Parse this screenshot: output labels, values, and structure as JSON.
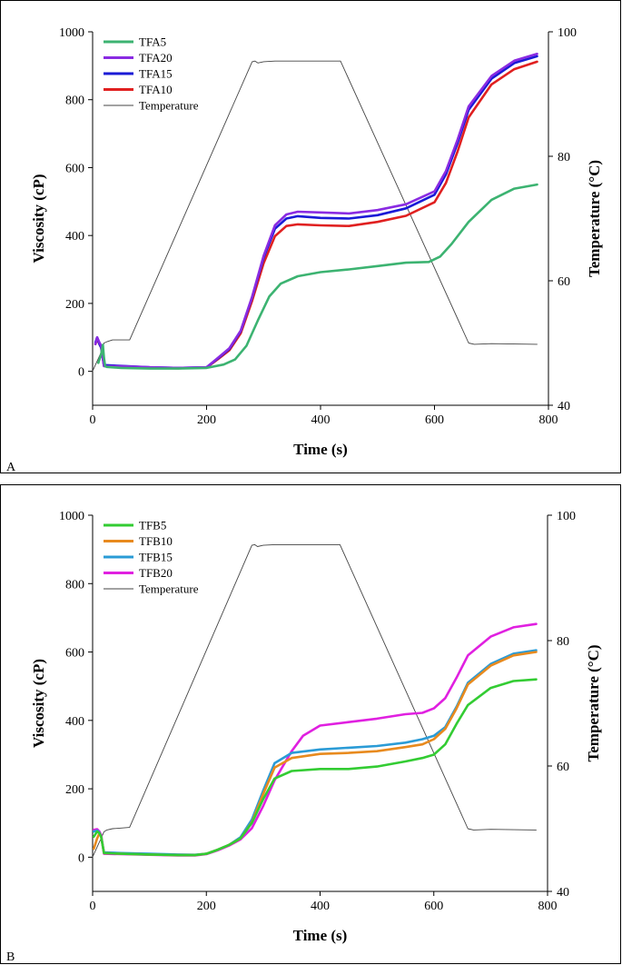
{
  "chart_data": [
    {
      "type": "line",
      "panel_label": "A",
      "xlabel": "Time (s)",
      "ylabel": "Viscosity (cP)",
      "y2label": "Temperature (°C)",
      "xlim": [
        0,
        800
      ],
      "ylim": [
        -100,
        1000
      ],
      "y2lim": [
        40,
        100
      ],
      "xticks": [
        0,
        200,
        400,
        600,
        800
      ],
      "yticks": [
        0,
        200,
        400,
        600,
        800,
        1000
      ],
      "y2ticks": [
        40,
        60,
        80,
        100
      ],
      "legend": "top-left",
      "grid": false,
      "series": [
        {
          "name": "TFA5",
          "color": "#3cb371",
          "axis": "left",
          "x": [
            10,
            15,
            18,
            20,
            22,
            25,
            50,
            100,
            150,
            200,
            230,
            250,
            270,
            290,
            310,
            330,
            360,
            400,
            450,
            500,
            550,
            590,
            610,
            630,
            660,
            700,
            740,
            780
          ],
          "y": [
            25,
            50,
            78,
            40,
            15,
            13,
            10,
            8,
            8,
            10,
            20,
            35,
            75,
            150,
            220,
            258,
            280,
            292,
            300,
            310,
            320,
            322,
            338,
            375,
            440,
            505,
            538,
            550
          ]
        },
        {
          "name": "TFA20",
          "color": "#8a2be2",
          "axis": "left",
          "x": [
            5,
            8,
            12,
            15,
            20,
            25,
            50,
            100,
            150,
            200,
            220,
            240,
            260,
            280,
            300,
            320,
            340,
            360,
            400,
            450,
            500,
            550,
            600,
            620,
            640,
            660,
            700,
            740,
            780
          ],
          "y": [
            80,
            100,
            85,
            75,
            15,
            15,
            15,
            12,
            10,
            12,
            40,
            68,
            120,
            220,
            340,
            430,
            462,
            470,
            468,
            465,
            475,
            492,
            530,
            590,
            680,
            780,
            870,
            915,
            935
          ]
        },
        {
          "name": "TFA15",
          "color": "#1a1ad6",
          "axis": "left",
          "x": [
            5,
            8,
            12,
            15,
            20,
            25,
            50,
            100,
            150,
            200,
            220,
            240,
            260,
            280,
            300,
            320,
            340,
            360,
            400,
            450,
            500,
            550,
            600,
            620,
            640,
            660,
            700,
            740,
            780
          ],
          "y": [
            85,
            100,
            80,
            70,
            18,
            18,
            16,
            12,
            10,
            12,
            38,
            66,
            118,
            218,
            335,
            420,
            450,
            457,
            452,
            450,
            460,
            480,
            520,
            580,
            670,
            770,
            862,
            908,
            928
          ]
        },
        {
          "name": "TFA10",
          "color": "#e02020",
          "axis": "left",
          "x": [
            5,
            8,
            12,
            15,
            20,
            25,
            50,
            100,
            150,
            200,
            220,
            240,
            260,
            280,
            300,
            320,
            340,
            360,
            400,
            450,
            500,
            550,
            600,
            620,
            640,
            660,
            700,
            740,
            780
          ],
          "y": [
            80,
            95,
            80,
            70,
            16,
            15,
            13,
            10,
            9,
            11,
            36,
            62,
            112,
            208,
            318,
            398,
            428,
            433,
            430,
            428,
            440,
            458,
            498,
            555,
            645,
            748,
            845,
            890,
            912
          ]
        },
        {
          "name": "Temperature",
          "color": "#444444",
          "axis": "right",
          "x": [
            0,
            15,
            20,
            25,
            35,
            65,
            280,
            285,
            290,
            300,
            320,
            360,
            400,
            435,
            660,
            670,
            700,
            780
          ],
          "y": [
            45.5,
            48.5,
            50,
            50.2,
            50.5,
            50.5,
            95.2,
            95.3,
            95,
            95.2,
            95.3,
            95.3,
            95.3,
            95.3,
            50,
            49.8,
            49.9,
            49.8
          ]
        }
      ]
    },
    {
      "type": "line",
      "panel_label": "B",
      "xlabel": "Time (s)",
      "ylabel": "Viscosity (cP)",
      "y2label": "Temperature (°C)",
      "xlim": [
        0,
        800
      ],
      "ylim": [
        -100,
        1000
      ],
      "y2lim": [
        40,
        100
      ],
      "xticks": [
        0,
        200,
        400,
        600,
        800
      ],
      "yticks": [
        0,
        200,
        400,
        600,
        800,
        1000
      ],
      "y2ticks": [
        40,
        60,
        80,
        100
      ],
      "legend": "top-left",
      "grid": false,
      "series": [
        {
          "name": "TFB5",
          "color": "#33cc33",
          "axis": "left",
          "x": [
            2,
            8,
            12,
            15,
            20,
            50,
            100,
            150,
            180,
            200,
            220,
            240,
            260,
            280,
            300,
            320,
            350,
            400,
            450,
            500,
            550,
            580,
            600,
            620,
            640,
            660,
            700,
            740,
            780
          ],
          "y": [
            60,
            75,
            70,
            60,
            12,
            10,
            8,
            6,
            6,
            10,
            22,
            36,
            55,
            100,
            170,
            230,
            252,
            258,
            258,
            265,
            280,
            290,
            300,
            330,
            390,
            445,
            495,
            515,
            520
          ]
        },
        {
          "name": "TFB10",
          "color": "#e88a1e",
          "axis": "left",
          "x": [
            2,
            8,
            12,
            15,
            20,
            50,
            100,
            150,
            180,
            200,
            220,
            240,
            260,
            280,
            300,
            320,
            350,
            400,
            450,
            500,
            550,
            580,
            600,
            620,
            640,
            660,
            700,
            740,
            780
          ],
          "y": [
            25,
            55,
            70,
            60,
            12,
            10,
            8,
            6,
            6,
            10,
            22,
            36,
            55,
            102,
            185,
            262,
            290,
            302,
            305,
            310,
            322,
            330,
            345,
            375,
            435,
            505,
            560,
            590,
            600
          ]
        },
        {
          "name": "TFB15",
          "color": "#2a9bd6",
          "axis": "left",
          "x": [
            2,
            8,
            12,
            15,
            20,
            50,
            100,
            150,
            180,
            200,
            220,
            240,
            260,
            280,
            300,
            320,
            350,
            400,
            450,
            500,
            550,
            580,
            600,
            620,
            640,
            660,
            700,
            740,
            780
          ],
          "y": [
            75,
            78,
            72,
            60,
            14,
            12,
            10,
            8,
            7,
            10,
            22,
            36,
            58,
            110,
            195,
            275,
            305,
            315,
            320,
            325,
            335,
            345,
            355,
            380,
            440,
            510,
            565,
            595,
            605
          ]
        },
        {
          "name": "TFB20",
          "color": "#e020e0",
          "axis": "left",
          "x": [
            2,
            8,
            12,
            15,
            20,
            50,
            100,
            150,
            180,
            200,
            220,
            240,
            260,
            280,
            300,
            320,
            350,
            370,
            400,
            450,
            500,
            550,
            580,
            600,
            620,
            640,
            660,
            700,
            740,
            780
          ],
          "y": [
            80,
            82,
            75,
            65,
            10,
            9,
            7,
            5,
            5,
            9,
            20,
            34,
            52,
            85,
            150,
            225,
            310,
            355,
            385,
            395,
            405,
            418,
            422,
            435,
            465,
            525,
            590,
            645,
            672,
            682
          ]
        },
        {
          "name": "Temperature",
          "color": "#444444",
          "axis": "right",
          "x": [
            0,
            15,
            20,
            25,
            35,
            65,
            280,
            285,
            290,
            300,
            320,
            360,
            400,
            435,
            660,
            670,
            700,
            780
          ],
          "y": [
            45.5,
            48.5,
            49.5,
            49.8,
            50,
            50.2,
            95.2,
            95.3,
            95,
            95.2,
            95.3,
            95.3,
            95.3,
            95.3,
            50,
            49.8,
            49.9,
            49.8
          ]
        }
      ]
    }
  ]
}
